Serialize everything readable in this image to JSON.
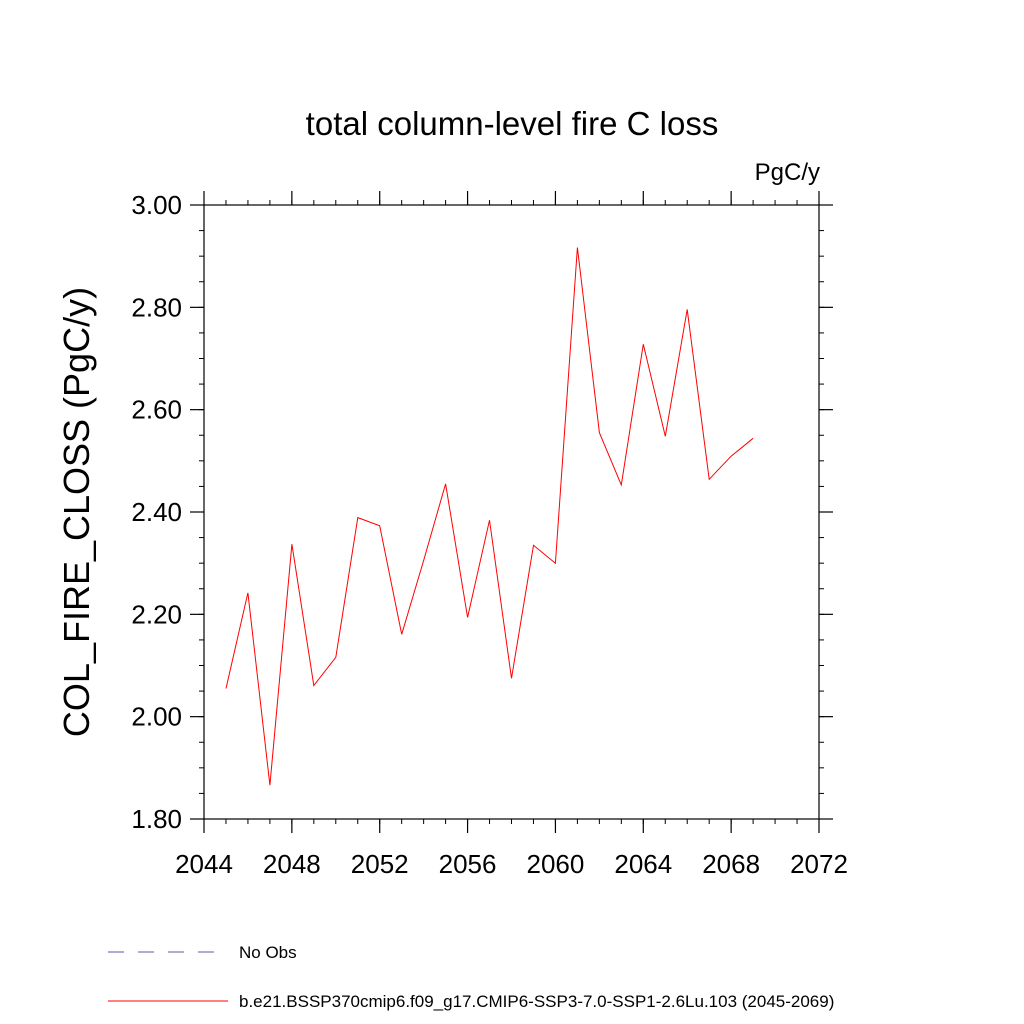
{
  "chart_data": {
    "type": "line",
    "title": "total column-level fire C loss",
    "units_label": "PgC/y",
    "xlabel": "",
    "ylabel": "COL_FIRE_CLOSS  (PgC/y)",
    "xlim": [
      2044,
      2072
    ],
    "ylim": [
      1.8,
      3.0
    ],
    "x_ticks": [
      2044,
      2048,
      2052,
      2056,
      2060,
      2064,
      2068,
      2072
    ],
    "x_tick_labels": [
      "2044",
      "2048",
      "2052",
      "2056",
      "2060",
      "2064",
      "2068",
      "2072"
    ],
    "y_ticks": [
      1.8,
      2.0,
      2.2,
      2.4,
      2.6,
      2.8,
      3.0
    ],
    "y_tick_labels": [
      "1.80",
      "2.00",
      "2.20",
      "2.40",
      "2.60",
      "2.80",
      "3.00"
    ],
    "grid": false,
    "series": [
      {
        "name": "b.e21.BSSP370cmip6.f09_g17.CMIP6-SSP3-7.0-SSP1-2.6Lu.103 (2045-2069)",
        "color": "#ff0000",
        "x": [
          2045,
          2046,
          2047,
          2048,
          2049,
          2050,
          2051,
          2052,
          2053,
          2054,
          2055,
          2056,
          2057,
          2058,
          2059,
          2060,
          2061,
          2062,
          2063,
          2064,
          2065,
          2066,
          2067,
          2068,
          2069
        ],
        "values": [
          2.055,
          2.242,
          1.866,
          2.337,
          2.061,
          2.116,
          2.389,
          2.373,
          2.161,
          2.305,
          2.455,
          2.194,
          2.384,
          2.075,
          2.335,
          2.3,
          2.917,
          2.555,
          2.453,
          2.728,
          2.548,
          2.796,
          2.464,
          2.509,
          2.544
        ]
      }
    ],
    "legend": [
      {
        "label": "No Obs",
        "style": "dashed",
        "color": "#6655aa"
      },
      {
        "label": "b.e21.BSSP370cmip6.f09_g17.CMIP6-SSP3-7.0-SSP1-2.6Lu.103 (2045-2069)",
        "style": "solid",
        "color": "#ff0000"
      }
    ],
    "legend_position": "bottom-left"
  }
}
